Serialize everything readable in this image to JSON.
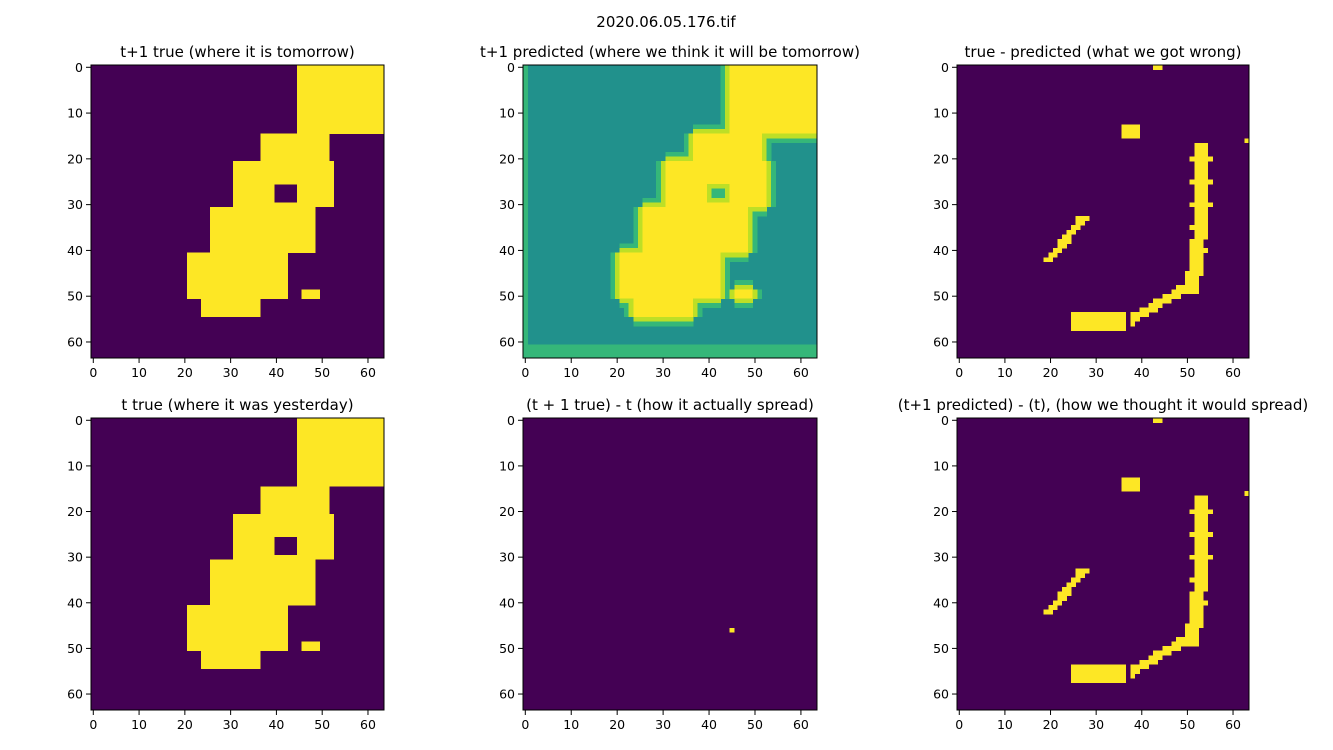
{
  "figure": {
    "suptitle": "2020.06.05.176.tif"
  },
  "palette": {
    "low": "#440154",
    "mid": "#21918c",
    "mid_light": "#35b779",
    "high_light": "#bddf26",
    "high": "#fde725"
  },
  "chart_data": [
    {
      "type": "heatmap",
      "title": "t+1 true (where it is tomorrow)",
      "grid_size": 64,
      "xlim": [
        0,
        63
      ],
      "ylim": [
        63,
        0
      ],
      "x_ticks": [
        0,
        10,
        20,
        30,
        40,
        50,
        60
      ],
      "y_ticks": [
        0,
        10,
        20,
        30,
        40,
        50,
        60
      ],
      "pattern": "burn_scar"
    },
    {
      "type": "heatmap",
      "title": "t+1 predicted (where we think it will be tomorrow)",
      "grid_size": 64,
      "xlim": [
        0,
        63
      ],
      "ylim": [
        63,
        0
      ],
      "x_ticks": [
        0,
        10,
        20,
        30,
        40,
        50,
        60
      ],
      "y_ticks": [
        0,
        10,
        20,
        30,
        40,
        50,
        60
      ],
      "pattern": "predicted"
    },
    {
      "type": "heatmap",
      "title": "true - predicted (what we got wrong)",
      "grid_size": 64,
      "xlim": [
        0,
        63
      ],
      "ylim": [
        63,
        0
      ],
      "x_ticks": [
        0,
        10,
        20,
        30,
        40,
        50,
        60
      ],
      "y_ticks": [
        0,
        10,
        20,
        30,
        40,
        50,
        60
      ],
      "pattern": "edge_error"
    },
    {
      "type": "heatmap",
      "title": "t true (where it was yesterday)",
      "grid_size": 64,
      "xlim": [
        0,
        63
      ],
      "ylim": [
        63,
        0
      ],
      "x_ticks": [
        0,
        10,
        20,
        30,
        40,
        50,
        60
      ],
      "y_ticks": [
        0,
        10,
        20,
        30,
        40,
        50,
        60
      ],
      "pattern": "burn_scar"
    },
    {
      "type": "heatmap",
      "title": "(t + 1 true) - t (how it actually spread)",
      "grid_size": 64,
      "xlim": [
        0,
        63
      ],
      "ylim": [
        63,
        0
      ],
      "x_ticks": [
        0,
        10,
        20,
        30,
        40,
        50,
        60
      ],
      "y_ticks": [
        0,
        10,
        20,
        30,
        40,
        50,
        60
      ],
      "pattern": "single_cell",
      "highlight_cells": [
        [
          45,
          46
        ]
      ]
    },
    {
      "type": "heatmap",
      "title": "(t+1 predicted) - (t), (how we thought it would spread)",
      "grid_size": 64,
      "xlim": [
        0,
        63
      ],
      "ylim": [
        63,
        0
      ],
      "x_ticks": [
        0,
        10,
        20,
        30,
        40,
        50,
        60
      ],
      "y_ticks": [
        0,
        10,
        20,
        30,
        40,
        50,
        60
      ],
      "pattern": "edge_error"
    }
  ]
}
